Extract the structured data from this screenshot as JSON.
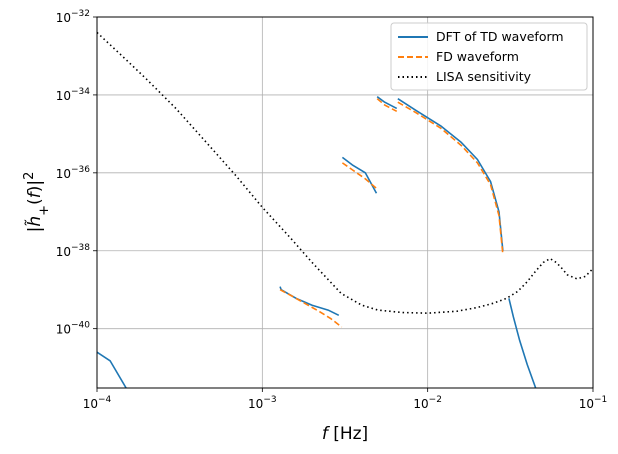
{
  "chart_data": {
    "type": "line",
    "x_scale": "log",
    "y_scale": "log",
    "xlim": [
      0.0001,
      0.1
    ],
    "ylim": [
      3e-42,
      1e-32
    ],
    "grid": true,
    "legend_position": "top-right",
    "xlabel": "f [Hz]",
    "ylabel": "|h̃+(f)|²",
    "x_ticks": [
      {
        "value": 0.0001,
        "base": "10",
        "exp": "−4"
      },
      {
        "value": 0.001,
        "base": "10",
        "exp": "−3"
      },
      {
        "value": 0.01,
        "base": "10",
        "exp": "−2"
      },
      {
        "value": 0.1,
        "base": "10",
        "exp": "−1"
      }
    ],
    "y_ticks": [
      {
        "value": 1e-40,
        "base": "10",
        "exp": "−40"
      },
      {
        "value": 1e-38,
        "base": "10",
        "exp": "−38"
      },
      {
        "value": 1e-36,
        "base": "10",
        "exp": "−36"
      },
      {
        "value": 1e-34,
        "base": "10",
        "exp": "−34"
      },
      {
        "value": 1e-32,
        "base": "10",
        "exp": "−32"
      }
    ],
    "series": [
      {
        "name": "DFT of TD waveform",
        "color": "#1f77b4",
        "style": "solid",
        "segments": [
          {
            "x": [
              0.0001,
              0.00012,
              0.00015
            ],
            "y": [
              2.5e-41,
              1.5e-41,
              3e-42
            ]
          },
          {
            "x": [
              0.00128,
              0.0013,
              0.0016,
              0.002,
              0.0025,
              0.0029
            ],
            "y": [
              1.2e-39,
              1e-39,
              6e-40,
              4e-40,
              3e-40,
              2.2e-40
            ]
          },
          {
            "x": [
              0.00305,
              0.0035,
              0.0042,
              0.0049
            ],
            "y": [
              2.5e-36,
              1.6e-36,
              1e-36,
              3e-37
            ]
          },
          {
            "x": [
              0.00495,
              0.0055,
              0.0065
            ],
            "y": [
              9e-35,
              6.5e-35,
              4.5e-35
            ]
          },
          {
            "x": [
              0.0066,
              0.0085,
              0.012,
              0.016,
              0.02,
              0.024,
              0.027,
              0.0285
            ],
            "y": [
              8e-35,
              4e-35,
              1.6e-35,
              6e-36,
              2.2e-36,
              6e-37,
              1e-37,
              1e-38
            ]
          },
          {
            "x": [
              0.031,
              0.033,
              0.036,
              0.04,
              0.045
            ],
            "y": [
              6e-40,
              2e-40,
              5e-41,
              1.2e-41,
              3e-42
            ]
          }
        ]
      },
      {
        "name": "FD waveform",
        "color": "#ff7f0e",
        "style": "dashed",
        "segments": [
          {
            "x": [
              0.00128,
              0.0015,
              0.0018,
              0.0022,
              0.0026,
              0.00302
            ],
            "y": [
              1e-39,
              7e-40,
              4.5e-40,
              2.8e-40,
              1.8e-40,
              1.1e-40
            ]
          },
          {
            "x": [
              0.00305,
              0.0035,
              0.0042,
              0.0049
            ],
            "y": [
              1.8e-36,
              1.2e-36,
              7e-37,
              4e-37
            ]
          },
          {
            "x": [
              0.00495,
              0.0055,
              0.0065
            ],
            "y": [
              8e-35,
              5.5e-35,
              3.8e-35
            ]
          },
          {
            "x": [
              0.0066,
              0.0085,
              0.012,
              0.016,
              0.02,
              0.024,
              0.027,
              0.0285
            ],
            "y": [
              6.5e-35,
              3.5e-35,
              1.4e-35,
              5e-36,
              1.8e-36,
              5e-37,
              8e-38,
              8e-39
            ]
          }
        ]
      },
      {
        "name": "LISA sensitivity",
        "color": "#000000",
        "style": "dotted",
        "x": [
          0.0001,
          0.00015,
          0.0002,
          0.0003,
          0.0005,
          0.0007,
          0.001,
          0.0015,
          0.002,
          0.003,
          0.004,
          0.005,
          0.007,
          0.01,
          0.015,
          0.02,
          0.025,
          0.03,
          0.035,
          0.04,
          0.045,
          0.05,
          0.055,
          0.06,
          0.065,
          0.07,
          0.08,
          0.09,
          0.1
        ],
        "y": [
          4e-33,
          8e-34,
          2.5e-34,
          4.5e-35,
          4e-36,
          8e-37,
          1.3e-37,
          2e-38,
          5e-39,
          8e-40,
          4e-40,
          3e-40,
          2.6e-40,
          2.5e-40,
          2.8e-40,
          3.5e-40,
          4.5e-40,
          6e-40,
          9e-40,
          1.6e-39,
          3e-39,
          5e-39,
          6.3e-39,
          5e-39,
          3.5e-39,
          2.4e-39,
          1.9e-39,
          2.2e-39,
          3.5e-39
        ]
      }
    ]
  }
}
